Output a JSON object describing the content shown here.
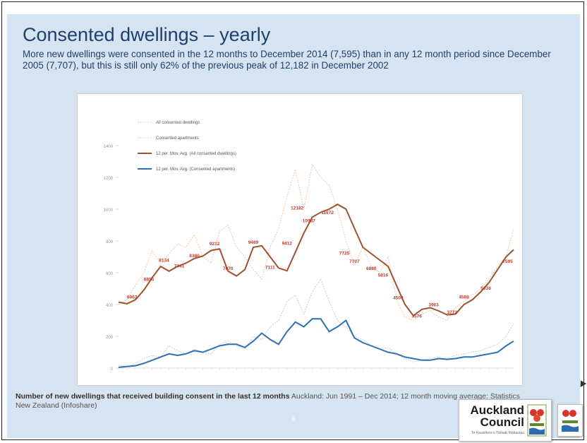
{
  "slide": {
    "title": "Consented dwellings – yearly",
    "subtitle": "More new dwellings were consented in the 12 months to December 2014 (7,595) than in any 12 month period since December 2005 (7,707), but this is still only 62% of the previous peak of 12,182 in December 2002",
    "caption_bold": "Number of new dwellings that received building consent in the last 12 months",
    "caption_rest": " Auckland: Jun 1991 – Dec 2014; 12 month moving average: Statistics New Zealand (Infoshare)",
    "page_number": "8",
    "logo_line1": "Auckland",
    "logo_line2": "Council",
    "logo_tagline": "Te Kaunihera o Tāmaki Makaurau"
  },
  "colors": {
    "background": "#d6e3f0",
    "title": "#1f3f6e",
    "all_monthly": "#f2c8a6",
    "all_avg": "#a0522d",
    "apt_monthly": "#b8d0e8",
    "apt_avg": "#2f6fb3",
    "label_text": "#c0392b"
  },
  "chart_data": {
    "type": "line",
    "ylabel": "",
    "ylim": [
      0,
      1600
    ],
    "yticks": [
      0,
      200,
      400,
      600,
      800,
      1000,
      1200,
      1400
    ],
    "xlim": [
      1991.5,
      2014.95
    ],
    "legend_position": "top-left",
    "grid": false,
    "series": [
      {
        "name": "All consented dwellings",
        "style": "monthly-dashed",
        "x": [
          1991.5,
          1992,
          1992.5,
          1993,
          1993.5,
          1994,
          1994.5,
          1995,
          1995.5,
          1996,
          1996.5,
          1997,
          1997.5,
          1998,
          1998.5,
          1999,
          1999.5,
          2000,
          2000.5,
          2001,
          2001.5,
          2002,
          2002.5,
          2003,
          2003.5,
          2004,
          2004.5,
          2005,
          2005.5,
          2006,
          2006.5,
          2007,
          2007.5,
          2008,
          2008.5,
          2009,
          2009.5,
          2010,
          2010.5,
          2011,
          2011.5,
          2012,
          2012.5,
          2013,
          2013.5,
          2014,
          2014.5,
          2014.95
        ],
        "y": [
          400,
          430,
          520,
          600,
          740,
          650,
          720,
          780,
          760,
          840,
          700,
          660,
          860,
          900,
          760,
          700,
          620,
          560,
          760,
          880,
          1080,
          1250,
          1000,
          1280,
          1200,
          1150,
          1000,
          800,
          650,
          760,
          640,
          600,
          700,
          430,
          320,
          300,
          340,
          360,
          320,
          300,
          380,
          420,
          460,
          500,
          560,
          640,
          700,
          880
        ]
      },
      {
        "name": "Consented apartments",
        "style": "monthly-dashed",
        "x": [
          1991.5,
          1992,
          1992.5,
          1993,
          1993.5,
          1994,
          1994.5,
          1995,
          1995.5,
          1996,
          1996.5,
          1997,
          1997.5,
          1998,
          1998.5,
          1999,
          1999.5,
          2000,
          2000.5,
          2001,
          2001.5,
          2002,
          2002.5,
          2003,
          2003.5,
          2004,
          2004.5,
          2005,
          2005.5,
          2006,
          2006.5,
          2007,
          2007.5,
          2008,
          2008.5,
          2009,
          2009.5,
          2010,
          2010.5,
          2011,
          2011.5,
          2012,
          2012.5,
          2013,
          2013.5,
          2014,
          2014.5,
          2014.95
        ],
        "y": [
          20,
          10,
          30,
          60,
          80,
          70,
          140,
          110,
          90,
          120,
          100,
          90,
          150,
          170,
          140,
          120,
          200,
          180,
          260,
          300,
          420,
          460,
          340,
          480,
          560,
          420,
          300,
          260,
          200,
          180,
          140,
          120,
          130,
          90,
          60,
          40,
          50,
          60,
          70,
          60,
          80,
          90,
          100,
          110,
          130,
          150,
          200,
          280
        ]
      },
      {
        "name": "12 per. Mov. Avg. (All consented dwellings)",
        "style": "avg",
        "x": [
          1991.5,
          1992,
          1992.5,
          1993,
          1993.5,
          1994,
          1994.5,
          1995,
          1995.5,
          1996,
          1996.5,
          1997,
          1997.5,
          1998,
          1998.5,
          1999,
          1999.5,
          2000,
          2000.5,
          2001,
          2001.5,
          2002,
          2002.5,
          2003,
          2003.5,
          2004,
          2004.5,
          2005,
          2005.5,
          2006,
          2006.5,
          2007,
          2007.5,
          2008,
          2008.5,
          2009,
          2009.5,
          2010,
          2010.5,
          2011,
          2011.5,
          2012,
          2012.5,
          2013,
          2013.5,
          2014,
          2014.5,
          2014.95
        ],
        "y": [
          415,
          405,
          430,
          490,
          570,
          640,
          610,
          640,
          660,
          690,
          705,
          740,
          750,
          610,
          580,
          620,
          760,
          770,
          700,
          630,
          612,
          730,
          850,
          950,
          980,
          1000,
          1030,
          1000,
          880,
          760,
          720,
          680,
          640,
          520,
          400,
          330,
          370,
          380,
          360,
          335,
          340,
          400,
          430,
          480,
          540,
          620,
          700,
          745
        ]
      },
      {
        "name": "12 per. Mov. Avg. (Consented apartments)",
        "style": "avg",
        "x": [
          1991.5,
          1992,
          1992.5,
          1993,
          1993.5,
          1994,
          1994.5,
          1995,
          1995.5,
          1996,
          1996.5,
          1997,
          1997.5,
          1998,
          1998.5,
          1999,
          1999.5,
          2000,
          2000.5,
          2001,
          2001.5,
          2002,
          2002.5,
          2003,
          2003.5,
          2004,
          2004.5,
          2005,
          2005.5,
          2006,
          2006.5,
          2007,
          2007.5,
          2008,
          2008.5,
          2009,
          2009.5,
          2010,
          2010.5,
          2011,
          2011.5,
          2012,
          2012.5,
          2013,
          2013.5,
          2014,
          2014.5,
          2014.95
        ],
        "y": [
          5,
          10,
          15,
          30,
          50,
          70,
          90,
          80,
          90,
          110,
          100,
          120,
          140,
          150,
          150,
          130,
          170,
          220,
          180,
          150,
          230,
          290,
          260,
          310,
          310,
          230,
          260,
          300,
          190,
          160,
          140,
          120,
          100,
          90,
          70,
          60,
          50,
          50,
          60,
          55,
          60,
          70,
          70,
          80,
          90,
          100,
          140,
          170
        ]
      }
    ],
    "point_labels": [
      {
        "x": 1992.3,
        "y": 425,
        "label": "6063"
      },
      {
        "x": 1993.3,
        "y": 535,
        "label": "6856"
      },
      {
        "x": 1994.2,
        "y": 655,
        "label": "8134"
      },
      {
        "x": 1995.1,
        "y": 620,
        "label": "7441"
      },
      {
        "x": 1996.0,
        "y": 685,
        "label": "8380"
      },
      {
        "x": 1997.2,
        "y": 760,
        "label": "9212"
      },
      {
        "x": 1998.0,
        "y": 605,
        "label": "7070"
      },
      {
        "x": 1999.5,
        "y": 770,
        "label": "9489"
      },
      {
        "x": 2000.5,
        "y": 612,
        "label": "7111"
      },
      {
        "x": 2001.5,
        "y": 762,
        "label": "9412"
      },
      {
        "x": 2002.1,
        "y": 985,
        "label": "12182"
      },
      {
        "x": 2002.8,
        "y": 905,
        "label": "10987"
      },
      {
        "x": 2003.9,
        "y": 955,
        "label": "11672"
      },
      {
        "x": 2004.9,
        "y": 700,
        "label": "7725"
      },
      {
        "x": 2005.5,
        "y": 650,
        "label": "7707"
      },
      {
        "x": 2006.5,
        "y": 605,
        "label": "6880"
      },
      {
        "x": 2007.2,
        "y": 562,
        "label": "5816"
      },
      {
        "x": 2008.1,
        "y": 420,
        "label": "4509"
      },
      {
        "x": 2009.2,
        "y": 305,
        "label": "3576"
      },
      {
        "x": 2010.2,
        "y": 375,
        "label": "3963"
      },
      {
        "x": 2011.3,
        "y": 328,
        "label": "3772"
      },
      {
        "x": 2012.0,
        "y": 425,
        "label": "4588"
      },
      {
        "x": 2013.3,
        "y": 480,
        "label": "5638"
      },
      {
        "x": 2014.6,
        "y": 650,
        "label": "7595"
      }
    ]
  }
}
